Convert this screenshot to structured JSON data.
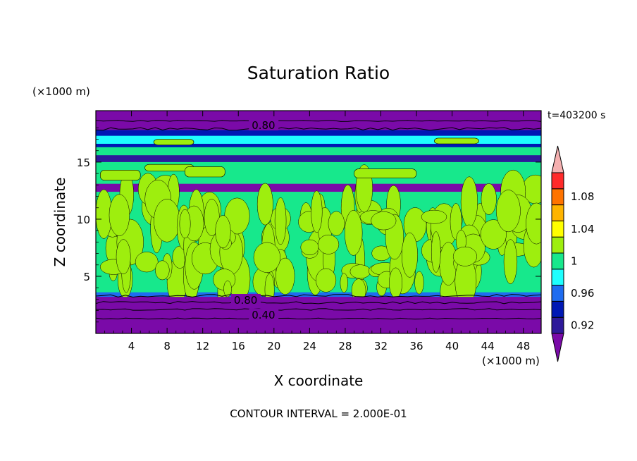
{
  "chart_data": {
    "type": "heatmap",
    "title": "Saturation Ratio",
    "xlabel": "X coordinate",
    "ylabel": "Z coordinate",
    "x_unit_label": "(×1000 m)",
    "y_unit_label": "(×1000 m)",
    "time_label": "t=403200 s",
    "footer": "CONTOUR INTERVAL = 2.000E-01",
    "xlim": [
      0,
      50
    ],
    "ylim": [
      0,
      19.5
    ],
    "x_ticks": [
      4,
      8,
      12,
      16,
      20,
      24,
      28,
      32,
      36,
      40,
      44,
      48
    ],
    "x_tick_labels": [
      "4",
      "8",
      "12",
      "16",
      "20",
      "24",
      "28",
      "32",
      "36",
      "40",
      "44",
      "48"
    ],
    "y_ticks": [
      5,
      10,
      15
    ],
    "y_tick_labels": [
      "5",
      "10",
      "15"
    ],
    "grid": false,
    "contour_labels": [
      {
        "text": "0.80",
        "x": 17.5,
        "z": 18.2
      },
      {
        "text": "0.80",
        "x": 15.5,
        "z": 2.9
      },
      {
        "text": "0.40",
        "x": 17.5,
        "z": 1.6
      }
    ],
    "colorbar": {
      "levels": [
        0.92,
        0.94,
        0.96,
        0.98,
        1.0,
        1.02,
        1.04,
        1.06,
        1.08,
        1.1
      ],
      "colors": [
        "#7a0aa8",
        "#2e1a9a",
        "#0018b4",
        "#1e6cf0",
        "#1effff",
        "#17e88c",
        "#9eee0e",
        "#ffff00",
        "#ffb400",
        "#ff7300",
        "#ff2a2a",
        "#f5b0b0"
      ],
      "labels": [
        "0.92",
        "0.96",
        "1",
        "1.04",
        "1.08"
      ],
      "label_values": [
        0.92,
        0.96,
        1.0,
        1.04,
        1.08
      ]
    }
  }
}
